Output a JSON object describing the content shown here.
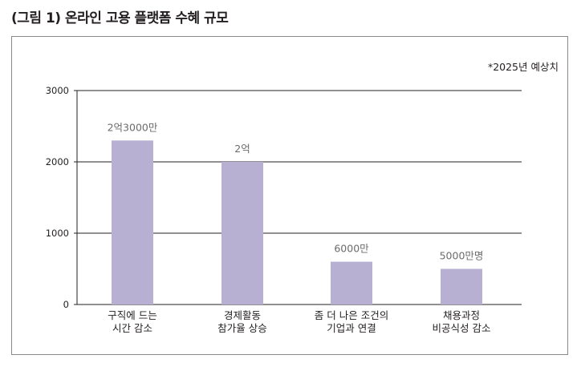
{
  "figure": {
    "title": "(그림 1) 온라인 고용 플랫폼 수혜 규모",
    "note": "*2025년 예상치"
  },
  "colors": {
    "bar": "#b8b0d3",
    "grid": "#231f20",
    "data_label": "#6b6b6b"
  },
  "chart_data": {
    "type": "bar",
    "categories": [
      [
        "구직에 드는",
        "시간 감소"
      ],
      [
        "경제활동",
        "참가율 상승"
      ],
      [
        "좀 더 나은 조건의",
        "기업과 연결"
      ],
      [
        "채용과정",
        "비공식성 감소"
      ]
    ],
    "values": [
      2300,
      2000,
      600,
      500
    ],
    "data_labels": [
      "2억3000만",
      "2억",
      "6000만",
      "5000만명"
    ],
    "ylim": [
      0,
      3000
    ],
    "yticks": [
      0,
      1000,
      2000,
      3000
    ],
    "grid": true,
    "xlabel": "",
    "ylabel": ""
  }
}
